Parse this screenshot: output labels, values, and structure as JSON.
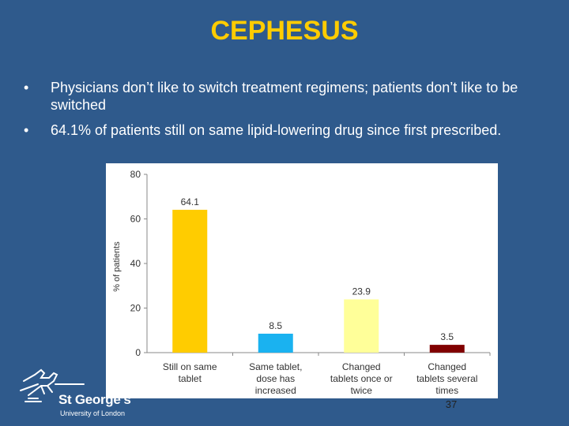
{
  "slide": {
    "title": "CEPHESUS",
    "bullets": [
      "Physicians don’t like to switch treatment regimens; patients don’t like to be switched",
      "64.1% of patients still on same lipid-lowering drug since first prescribed."
    ],
    "bullet_symbol": "•",
    "slide_number": "37"
  },
  "logo": {
    "name": "St George’s",
    "subtitle": "University of London",
    "icon": "horse-rider-logo-icon"
  },
  "colors": {
    "background": "#2f5a8c",
    "title": "#ffcc00",
    "chart_background": "#ffffff"
  },
  "chart_data": {
    "type": "bar",
    "categories": [
      [
        "Still on same",
        "tablet"
      ],
      [
        "Same tablet,",
        "dose has",
        "increased"
      ],
      [
        "Changed",
        "tablets once or",
        "twice"
      ],
      [
        "Changed",
        "tablets several",
        "times"
      ]
    ],
    "values": [
      64.1,
      8.5,
      23.9,
      3.5
    ],
    "value_labels": [
      "64.1",
      "8.5",
      "23.9",
      "3.5"
    ],
    "bar_colors": [
      "#ffcc00",
      "#1ab2f0",
      "#ffff99",
      "#800000"
    ],
    "ylabel": "% of patients",
    "xlabel": "",
    "title": "",
    "ylim": [
      0,
      80
    ],
    "yticks": [
      0,
      20,
      40,
      60,
      80
    ],
    "grid": false,
    "legend": "none"
  }
}
